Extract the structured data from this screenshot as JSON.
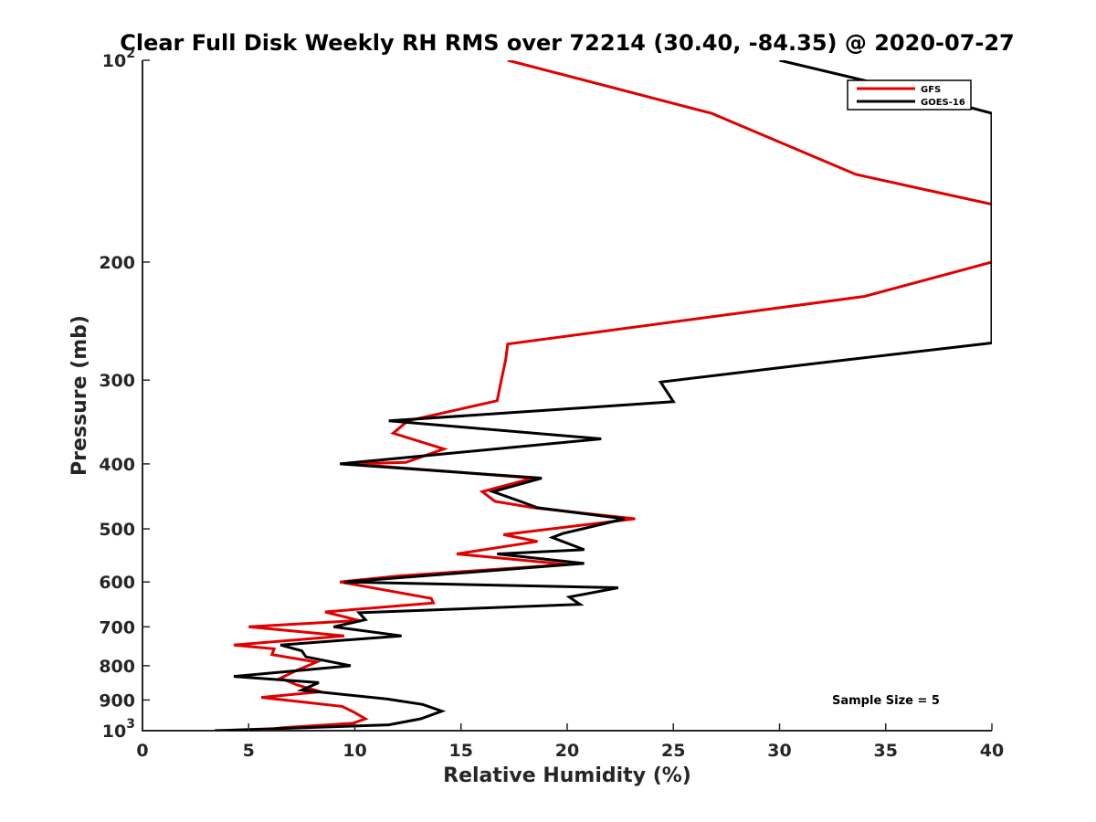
{
  "chart_data": {
    "type": "line",
    "title": "Clear Full Disk Weekly RH RMS over 72214 (30.40, -84.35) @ 2020-07-27",
    "xlabel": "Relative Humidity (%)",
    "ylabel": "Pressure (mb)",
    "xlim": [
      0,
      40
    ],
    "ylim": [
      100,
      1000
    ],
    "yscale": "log",
    "y_reversed": true,
    "grid": false,
    "legend_position": "top-right",
    "x_ticks": [
      "0",
      "5",
      "10",
      "15",
      "20",
      "25",
      "30",
      "35",
      "40"
    ],
    "x_tick_values": [
      0,
      5,
      10,
      15,
      20,
      25,
      30,
      35,
      40
    ],
    "y_ticks": [
      {
        "value": 100,
        "base": "10",
        "exp": "2"
      },
      {
        "value": 200,
        "label": "200"
      },
      {
        "value": 300,
        "label": "300"
      },
      {
        "value": 400,
        "label": "400"
      },
      {
        "value": 500,
        "label": "500"
      },
      {
        "value": 600,
        "label": "600"
      },
      {
        "value": 700,
        "label": "700"
      },
      {
        "value": 800,
        "label": "800"
      },
      {
        "value": 900,
        "label": "900"
      },
      {
        "value": 1000,
        "base": "10",
        "exp": "3"
      }
    ],
    "annotation": "Sample Size = 5",
    "series": [
      {
        "name": "GFS",
        "color": "#e00000",
        "points": [
          [
            17.2,
            100
          ],
          [
            26.8,
            120
          ],
          [
            33.6,
            148
          ],
          [
            40,
            164
          ],
          [
            40,
            200
          ],
          [
            34,
            225
          ],
          [
            17.2,
            265
          ],
          [
            17.1,
            280
          ],
          [
            16.9,
            300
          ],
          [
            16.7,
            322
          ],
          [
            12.5,
            345
          ],
          [
            11.8,
            360
          ],
          [
            14.2,
            380
          ],
          [
            12.4,
            398
          ],
          [
            9.8,
            400
          ],
          [
            18.4,
            420
          ],
          [
            16,
            440
          ],
          [
            16.6,
            455
          ],
          [
            18.4,
            465
          ],
          [
            23.2,
            483
          ],
          [
            17,
            510
          ],
          [
            18.6,
            522
          ],
          [
            14.8,
            545
          ],
          [
            20,
            565
          ],
          [
            12,
            588
          ],
          [
            9.3,
            600
          ],
          [
            13.6,
            635
          ],
          [
            13.7,
            645
          ],
          [
            8.6,
            665
          ],
          [
            10.2,
            685
          ],
          [
            5,
            700
          ],
          [
            9.5,
            722
          ],
          [
            4.3,
            745
          ],
          [
            6.2,
            755
          ],
          [
            6.1,
            770
          ],
          [
            8.2,
            790
          ],
          [
            7.3,
            812
          ],
          [
            6.5,
            835
          ],
          [
            7.3,
            855
          ],
          [
            8.4,
            875
          ],
          [
            5.6,
            892
          ],
          [
            7.4,
            905
          ],
          [
            9.4,
            920
          ],
          [
            10,
            940
          ],
          [
            10.5,
            960
          ],
          [
            9.9,
            975
          ],
          [
            6.6,
            990
          ],
          [
            5.5,
            1000
          ]
        ]
      },
      {
        "name": "GOES-16",
        "color": "#000000",
        "points": [
          [
            30,
            100
          ],
          [
            35.5,
            110
          ],
          [
            40,
            120
          ],
          [
            40,
            264
          ],
          [
            31.4,
            284
          ],
          [
            24.4,
            302
          ],
          [
            25,
            323
          ],
          [
            11.6,
            345
          ],
          [
            21.6,
            367
          ],
          [
            9.3,
            400
          ],
          [
            18.8,
            420
          ],
          [
            16.5,
            440
          ],
          [
            17.8,
            455
          ],
          [
            18.6,
            465
          ],
          [
            22.7,
            483
          ],
          [
            19.8,
            508
          ],
          [
            19.3,
            515
          ],
          [
            20.8,
            537
          ],
          [
            16.7,
            545
          ],
          [
            20.8,
            563
          ],
          [
            9.5,
            600
          ],
          [
            22.4,
            612
          ],
          [
            20.1,
            632
          ],
          [
            20.6,
            648
          ],
          [
            10.2,
            667
          ],
          [
            10.5,
            683
          ],
          [
            9,
            700
          ],
          [
            12.2,
            722
          ],
          [
            6.5,
            745
          ],
          [
            7.5,
            760
          ],
          [
            7.7,
            776
          ],
          [
            9.8,
            800
          ],
          [
            4.3,
            830
          ],
          [
            8.3,
            848
          ],
          [
            7.5,
            870
          ],
          [
            11.5,
            897
          ],
          [
            13.2,
            914
          ],
          [
            14.1,
            935
          ],
          [
            13.1,
            960
          ],
          [
            11.6,
            980
          ],
          [
            3.4,
            1000
          ]
        ]
      }
    ]
  }
}
